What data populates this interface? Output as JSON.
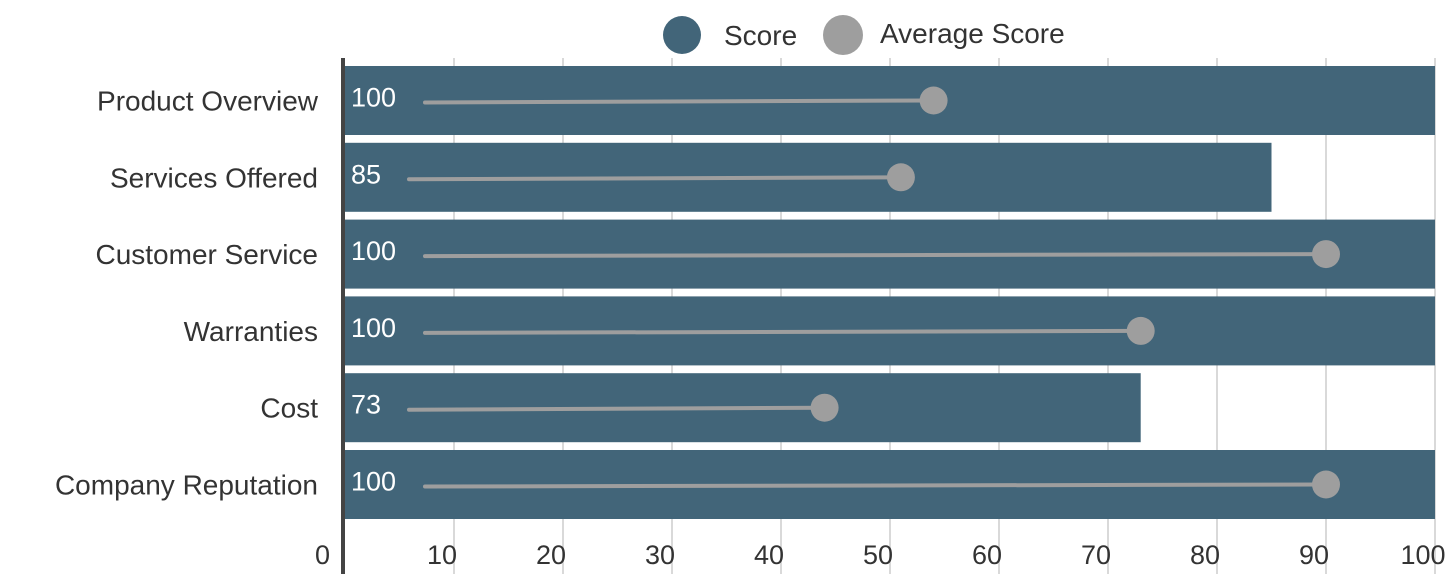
{
  "chart_data": {
    "type": "bar",
    "orientation": "horizontal",
    "categories": [
      "Product Overview",
      "Services Offered",
      "Customer Service",
      "Warranties",
      "Cost",
      "Company Reputation"
    ],
    "series": [
      {
        "name": "Score",
        "values": [
          100,
          85,
          100,
          100,
          73,
          100
        ],
        "color": "#426579",
        "marker": "bar"
      },
      {
        "name": "Average Score",
        "values": [
          54,
          51,
          90,
          73,
          44,
          90
        ],
        "color": "#9e9e9e",
        "marker": "dot-line"
      }
    ],
    "data_labels": [
      "100",
      "85",
      "100",
      "100",
      "73",
      "100"
    ],
    "x_ticks": [
      "0",
      "10",
      "20",
      "30",
      "40",
      "50",
      "60",
      "70",
      "80",
      "90",
      "100"
    ],
    "xlim": [
      0,
      100
    ],
    "grid": true,
    "legend_position": "top-center",
    "colors": {
      "axis": "#444444",
      "grid": "#d9d9d9"
    }
  }
}
